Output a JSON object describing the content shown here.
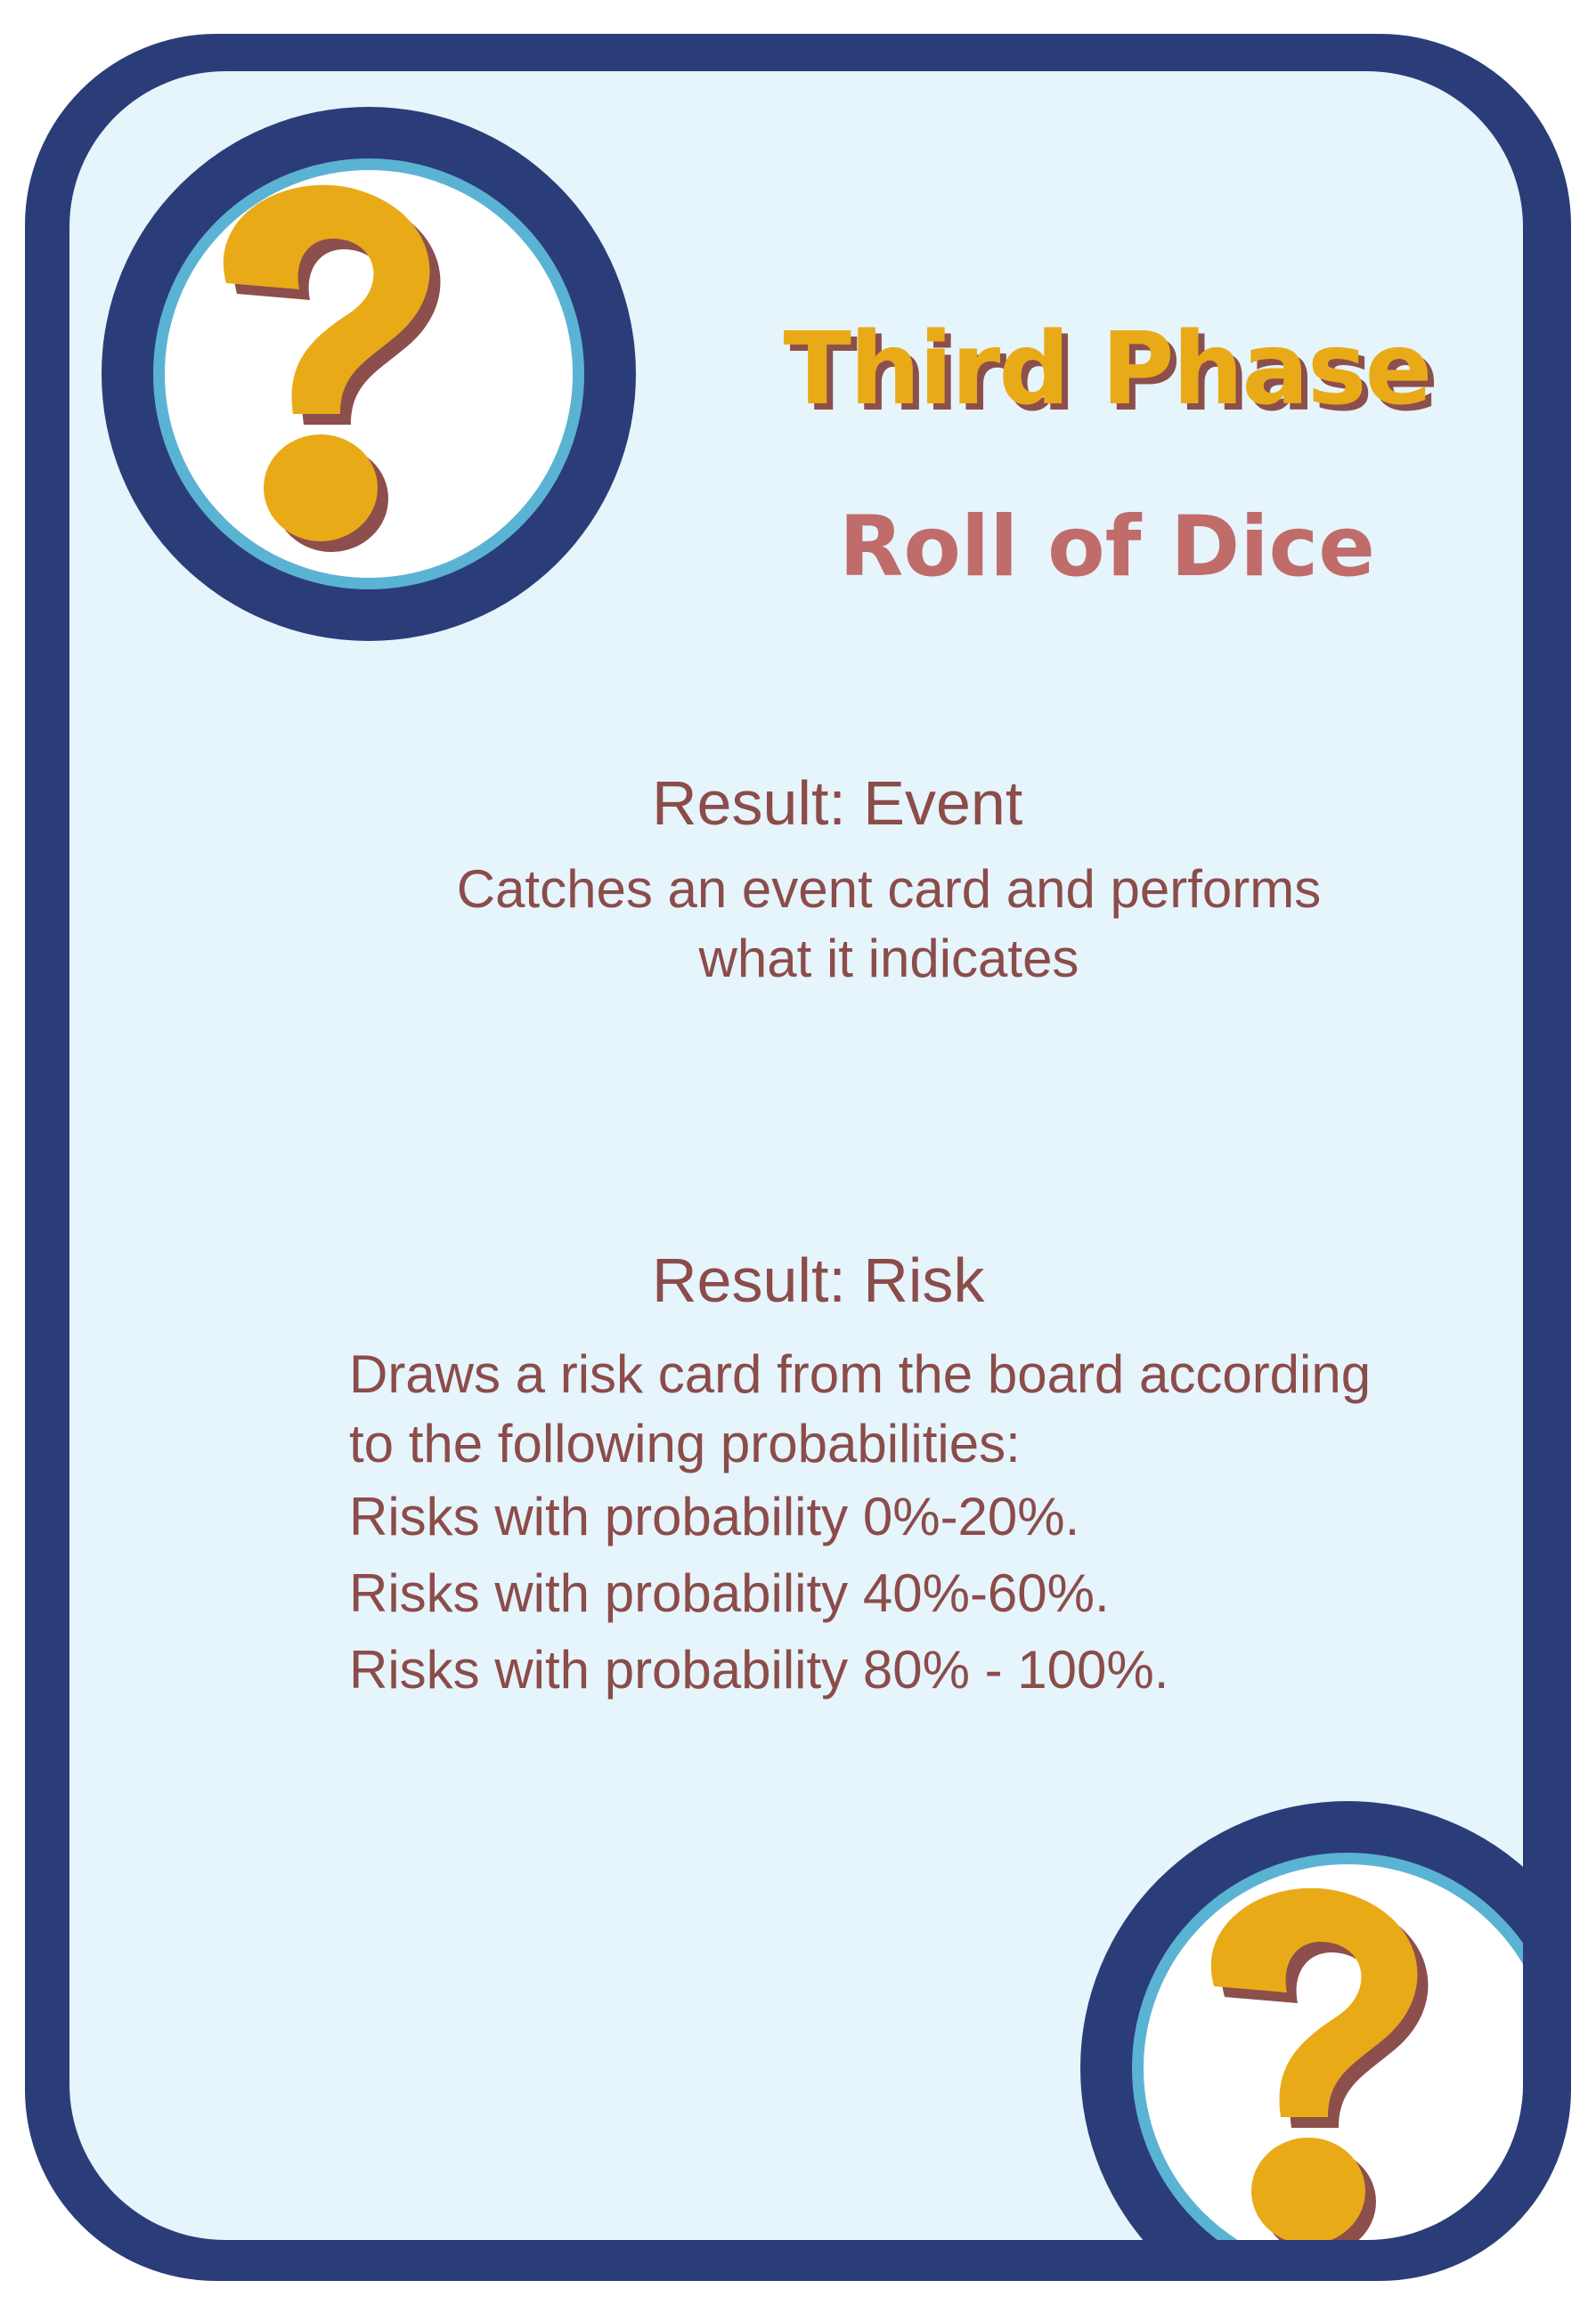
{
  "card": {
    "title": "Third Phase",
    "subtitle": "Roll of Dice",
    "event": {
      "heading": "Result: Event",
      "description_lines": [
        "Catches an event card and performs",
        "what it indicates"
      ]
    },
    "risk": {
      "heading": "Result: Risk",
      "intro_lines": [
        "Draws a risk card from the board according",
        "to the following probabilities:"
      ],
      "probabilities": [
        "Risks with probability 0%-20%.",
        "Risks with probability 40%-60%.",
        "Risks with probability 80% - 100%."
      ]
    }
  },
  "icons": {
    "top_left": "question-mark-icon",
    "bottom_right": "question-mark-icon"
  },
  "colors": {
    "frame": "#2b3d78",
    "ring": "#5bb3d4",
    "background": "#e6f4fc",
    "title": "#e9aa17",
    "title_shadow": "#8c4f4c",
    "subtitle": "#c06c6a",
    "text": "#8b4c4a"
  }
}
